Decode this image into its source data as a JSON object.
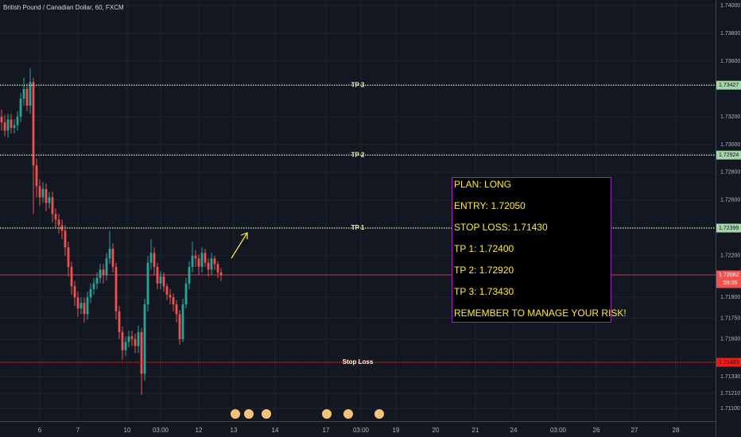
{
  "chart_data": {
    "type": "candlestick",
    "title": "British Pound / Canadian Dollar, 60, FXCM",
    "x": [
      0,
      1,
      2,
      3,
      4,
      5,
      6,
      7,
      8,
      9,
      10,
      11,
      12,
      13,
      14,
      15,
      16,
      17,
      18,
      19,
      20,
      21,
      22,
      23,
      24,
      25,
      26,
      27,
      28,
      29,
      30,
      31,
      32,
      33,
      34,
      35,
      36,
      37,
      38,
      39,
      40,
      41,
      42,
      43,
      44,
      45,
      46,
      47,
      48,
      49,
      50,
      51,
      52,
      53,
      54,
      55,
      56,
      57,
      58,
      59,
      60,
      61,
      62,
      63,
      64,
      65,
      66,
      67,
      68,
      69
    ],
    "open": [
      1.732,
      1.7316,
      1.731,
      1.7318,
      1.7312,
      1.7314,
      1.732,
      1.7333,
      1.734,
      1.7328,
      1.7345,
      1.7285,
      1.727,
      1.7262,
      1.7268,
      1.7258,
      1.7262,
      1.725,
      1.7246,
      1.7242,
      1.7238,
      1.7226,
      1.7212,
      1.7198,
      1.719,
      1.7182,
      1.7186,
      1.7178,
      1.719,
      1.7196,
      1.72,
      1.7204,
      1.721,
      1.7206,
      1.7218,
      1.7225,
      1.7212,
      1.718,
      1.7165,
      1.7152,
      1.7158,
      1.7162,
      1.716,
      1.7155,
      1.7165,
      1.7135,
      1.7185,
      1.7215,
      1.7222,
      1.7212,
      1.72,
      1.7205,
      1.7198,
      1.7192,
      1.719,
      1.7185,
      1.7178,
      1.716,
      1.7185,
      1.72,
      1.7212,
      1.722,
      1.7218,
      1.7212,
      1.7222,
      1.7215,
      1.721,
      1.7218,
      1.7214,
      1.7208
    ],
    "high": [
      1.7325,
      1.7321,
      1.7322,
      1.7322,
      1.7318,
      1.7324,
      1.7337,
      1.7348,
      1.7344,
      1.7355,
      1.7348,
      1.729,
      1.7275,
      1.7273,
      1.7272,
      1.7266,
      1.7266,
      1.7254,
      1.725,
      1.7246,
      1.7242,
      1.723,
      1.7216,
      1.7202,
      1.7194,
      1.719,
      1.719,
      1.7194,
      1.72,
      1.7204,
      1.7208,
      1.7214,
      1.7214,
      1.7222,
      1.7238,
      1.7229,
      1.7215,
      1.7184,
      1.7169,
      1.7162,
      1.7166,
      1.7166,
      1.7164,
      1.717,
      1.7168,
      1.7189,
      1.722,
      1.7232,
      1.7226,
      1.7215,
      1.7209,
      1.7208,
      1.72,
      1.7196,
      1.7193,
      1.7188,
      1.7181,
      1.7189,
      1.7204,
      1.7216,
      1.723,
      1.7224,
      1.7221,
      1.7226,
      1.7225,
      1.7218,
      1.7222,
      1.722,
      1.7216,
      1.7211
    ],
    "low": [
      1.731,
      1.7306,
      1.7305,
      1.7308,
      1.7308,
      1.731,
      1.7316,
      1.7328,
      1.7324,
      1.7322,
      1.725,
      1.7262,
      1.7256,
      1.7258,
      1.7252,
      1.7254,
      1.7244,
      1.724,
      1.7236,
      1.7232,
      1.722,
      1.7205,
      1.7192,
      1.7184,
      1.7176,
      1.7178,
      1.7172,
      1.7174,
      1.7186,
      1.7192,
      1.7196,
      1.72,
      1.72,
      1.7202,
      1.7214,
      1.7208,
      1.7174,
      1.716,
      1.7145,
      1.7148,
      1.7154,
      1.7155,
      1.715,
      1.715,
      1.712,
      1.713,
      1.718,
      1.721,
      1.7206,
      1.7196,
      1.7196,
      1.7194,
      1.7188,
      1.7185,
      1.718,
      1.7172,
      1.7156,
      1.7158,
      1.7182,
      1.7196,
      1.7208,
      1.7212,
      1.7206,
      1.7208,
      1.7212,
      1.7205,
      1.7206,
      1.721,
      1.7204,
      1.7202
    ],
    "close": [
      1.7316,
      1.731,
      1.7318,
      1.7312,
      1.7314,
      1.732,
      1.7333,
      1.734,
      1.7328,
      1.7345,
      1.7285,
      1.727,
      1.7262,
      1.7268,
      1.7258,
      1.7262,
      1.725,
      1.7246,
      1.7242,
      1.7238,
      1.7226,
      1.7212,
      1.7198,
      1.719,
      1.7182,
      1.7186,
      1.7178,
      1.719,
      1.7196,
      1.72,
      1.7204,
      1.721,
      1.7206,
      1.7218,
      1.7225,
      1.7212,
      1.718,
      1.7165,
      1.7152,
      1.7158,
      1.7162,
      1.716,
      1.7155,
      1.7165,
      1.7135,
      1.7185,
      1.7215,
      1.7222,
      1.7212,
      1.72,
      1.7205,
      1.7198,
      1.7192,
      1.719,
      1.7185,
      1.7178,
      1.716,
      1.7185,
      1.72,
      1.7212,
      1.722,
      1.7218,
      1.7212,
      1.7222,
      1.7215,
      1.721,
      1.7218,
      1.7214,
      1.7208,
      1.7206
    ],
    "up_color": "#26a69a",
    "down_color": "#ef5350",
    "xlim": [
      -0.5,
      224.5
    ],
    "ylim": [
      1.7101,
      1.7404
    ],
    "grid": true,
    "xticks": [
      {
        "value": 12,
        "label": "6"
      },
      {
        "value": 24,
        "label": "7"
      },
      {
        "value": 39.5,
        "label": "10"
      },
      {
        "value": 50,
        "label": "03:00"
      },
      {
        "value": 62,
        "label": "12"
      },
      {
        "value": 73,
        "label": "13"
      },
      {
        "value": 86,
        "label": "14"
      },
      {
        "value": 102,
        "label": "17"
      },
      {
        "value": 113,
        "label": "03:00"
      },
      {
        "value": 124,
        "label": "19"
      },
      {
        "value": 136.5,
        "label": "20"
      },
      {
        "value": 149,
        "label": "21"
      },
      {
        "value": 161,
        "label": "24"
      },
      {
        "value": 175,
        "label": "03:00"
      },
      {
        "value": 187,
        "label": "26"
      },
      {
        "value": 199,
        "label": "27"
      },
      {
        "value": 212,
        "label": "28"
      }
    ],
    "yticks": [
      {
        "value": 1.74,
        "label": "1.74000"
      },
      {
        "value": 1.738,
        "label": "1.73800"
      },
      {
        "value": 1.736,
        "label": "1.73600"
      },
      {
        "value": 1.732,
        "label": "1.73200"
      },
      {
        "value": 1.73,
        "label": "1.73000"
      },
      {
        "value": 1.728,
        "label": "1.72800"
      },
      {
        "value": 1.726,
        "label": "1.72600"
      },
      {
        "value": 1.722,
        "label": "1.72200"
      },
      {
        "value": 1.719,
        "label": "1.71900"
      },
      {
        "value": 1.7175,
        "label": "1.71750"
      },
      {
        "value": 1.716,
        "label": "1.71600"
      },
      {
        "value": 1.7133,
        "label": "1.71330"
      },
      {
        "value": 1.7121,
        "label": "1.71210"
      },
      {
        "value": 1.711,
        "label": "1.71100"
      }
    ],
    "levels": [
      {
        "name": "TP 3",
        "value": 1.73427,
        "label": "1.73427",
        "color": "#a5d6a7"
      },
      {
        "name": "TP 2",
        "value": 1.72924,
        "label": "1.72924",
        "color": "#a5d6a7"
      },
      {
        "name": "TP 1",
        "value": 1.72399,
        "label": "1.72399",
        "color": "#a5d6a7"
      },
      {
        "name": "Stop Loss",
        "value": 1.71433,
        "label": "1.71433",
        "color": "#ef1c1c"
      }
    ],
    "current_price": {
      "value": 1.72062,
      "label": "1.72062",
      "countdown": "59:35",
      "color": "#ef5350"
    },
    "annotations": [
      "PLAN: LONG",
      "ENTRY: 1.72050",
      "STOP LOSS: 1.71430",
      "TP 1: 1.72400",
      "TP 2: 1.72920",
      "TP 3: 1.73430",
      "REMEMBER TO MANAGE YOUR RISK!"
    ]
  }
}
